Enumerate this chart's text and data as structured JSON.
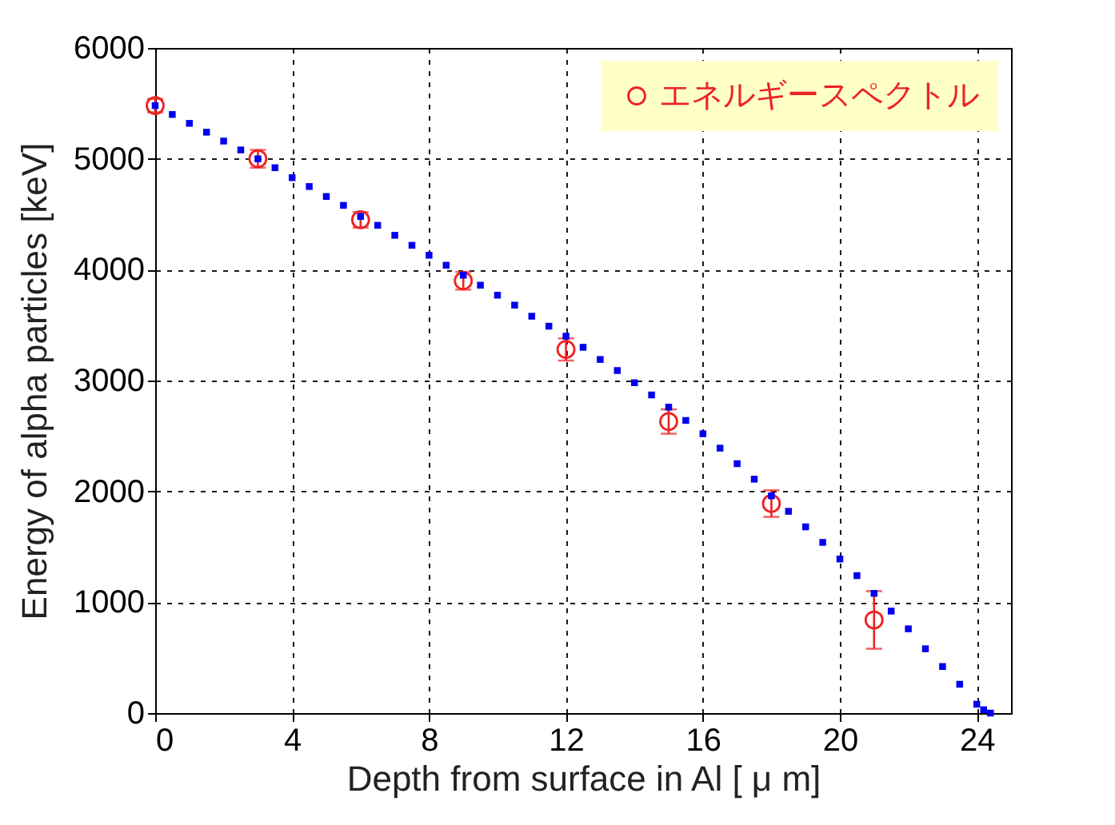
{
  "chart_data": {
    "type": "scatter",
    "xlabel": "Depth from surface in Al [ μ m]",
    "ylabel": "Energy of alpha particles [keV]",
    "xlim": [
      0,
      25
    ],
    "xticks": [
      0,
      4,
      8,
      12,
      16,
      20,
      24
    ],
    "ylim": [
      0,
      6000
    ],
    "yticks": [
      0,
      1000,
      2000,
      3000,
      4000,
      5000,
      6000
    ],
    "grid": true,
    "legend": "top right",
    "series": [
      {
        "color": "#0000ee",
        "marker": "square",
        "x": [
          0,
          0.5,
          1,
          1.5,
          2,
          2.5,
          3,
          3.5,
          4,
          4.5,
          5,
          5.5,
          6,
          6.5,
          7,
          7.5,
          8,
          8.5,
          9,
          9.5,
          10,
          10.5,
          11,
          11.5,
          12,
          12.5,
          13,
          13.5,
          14,
          14.5,
          15,
          15.5,
          16,
          16.5,
          17,
          17.5,
          18,
          18.5,
          19,
          19.5,
          20,
          20.5,
          21,
          21.5,
          22,
          22.5,
          23,
          23.5,
          24,
          24.2,
          24.4
        ],
        "values": [
          5480,
          5400,
          5320,
          5240,
          5160,
          5080,
          5000,
          4920,
          4830,
          4750,
          4660,
          4580,
          4480,
          4400,
          4310,
          4220,
          4130,
          4040,
          3950,
          3860,
          3770,
          3680,
          3580,
          3490,
          3400,
          3300,
          3190,
          3090,
          2980,
          2870,
          2760,
          2640,
          2520,
          2390,
          2250,
          2110,
          1960,
          1820,
          1680,
          1540,
          1390,
          1240,
          1080,
          920,
          760,
          580,
          420,
          260,
          80,
          30,
          0
        ]
      },
      {
        "name": "エネルギースペクトル",
        "color": "#ee2222",
        "marker": "circle",
        "x": [
          0,
          3,
          6,
          9,
          12,
          15,
          18,
          21
        ],
        "values": [
          5480,
          5000,
          4450,
          3900,
          3280,
          2630,
          1890,
          840
        ],
        "errors": [
          60,
          80,
          70,
          80,
          100,
          110,
          120,
          260
        ]
      }
    ]
  }
}
